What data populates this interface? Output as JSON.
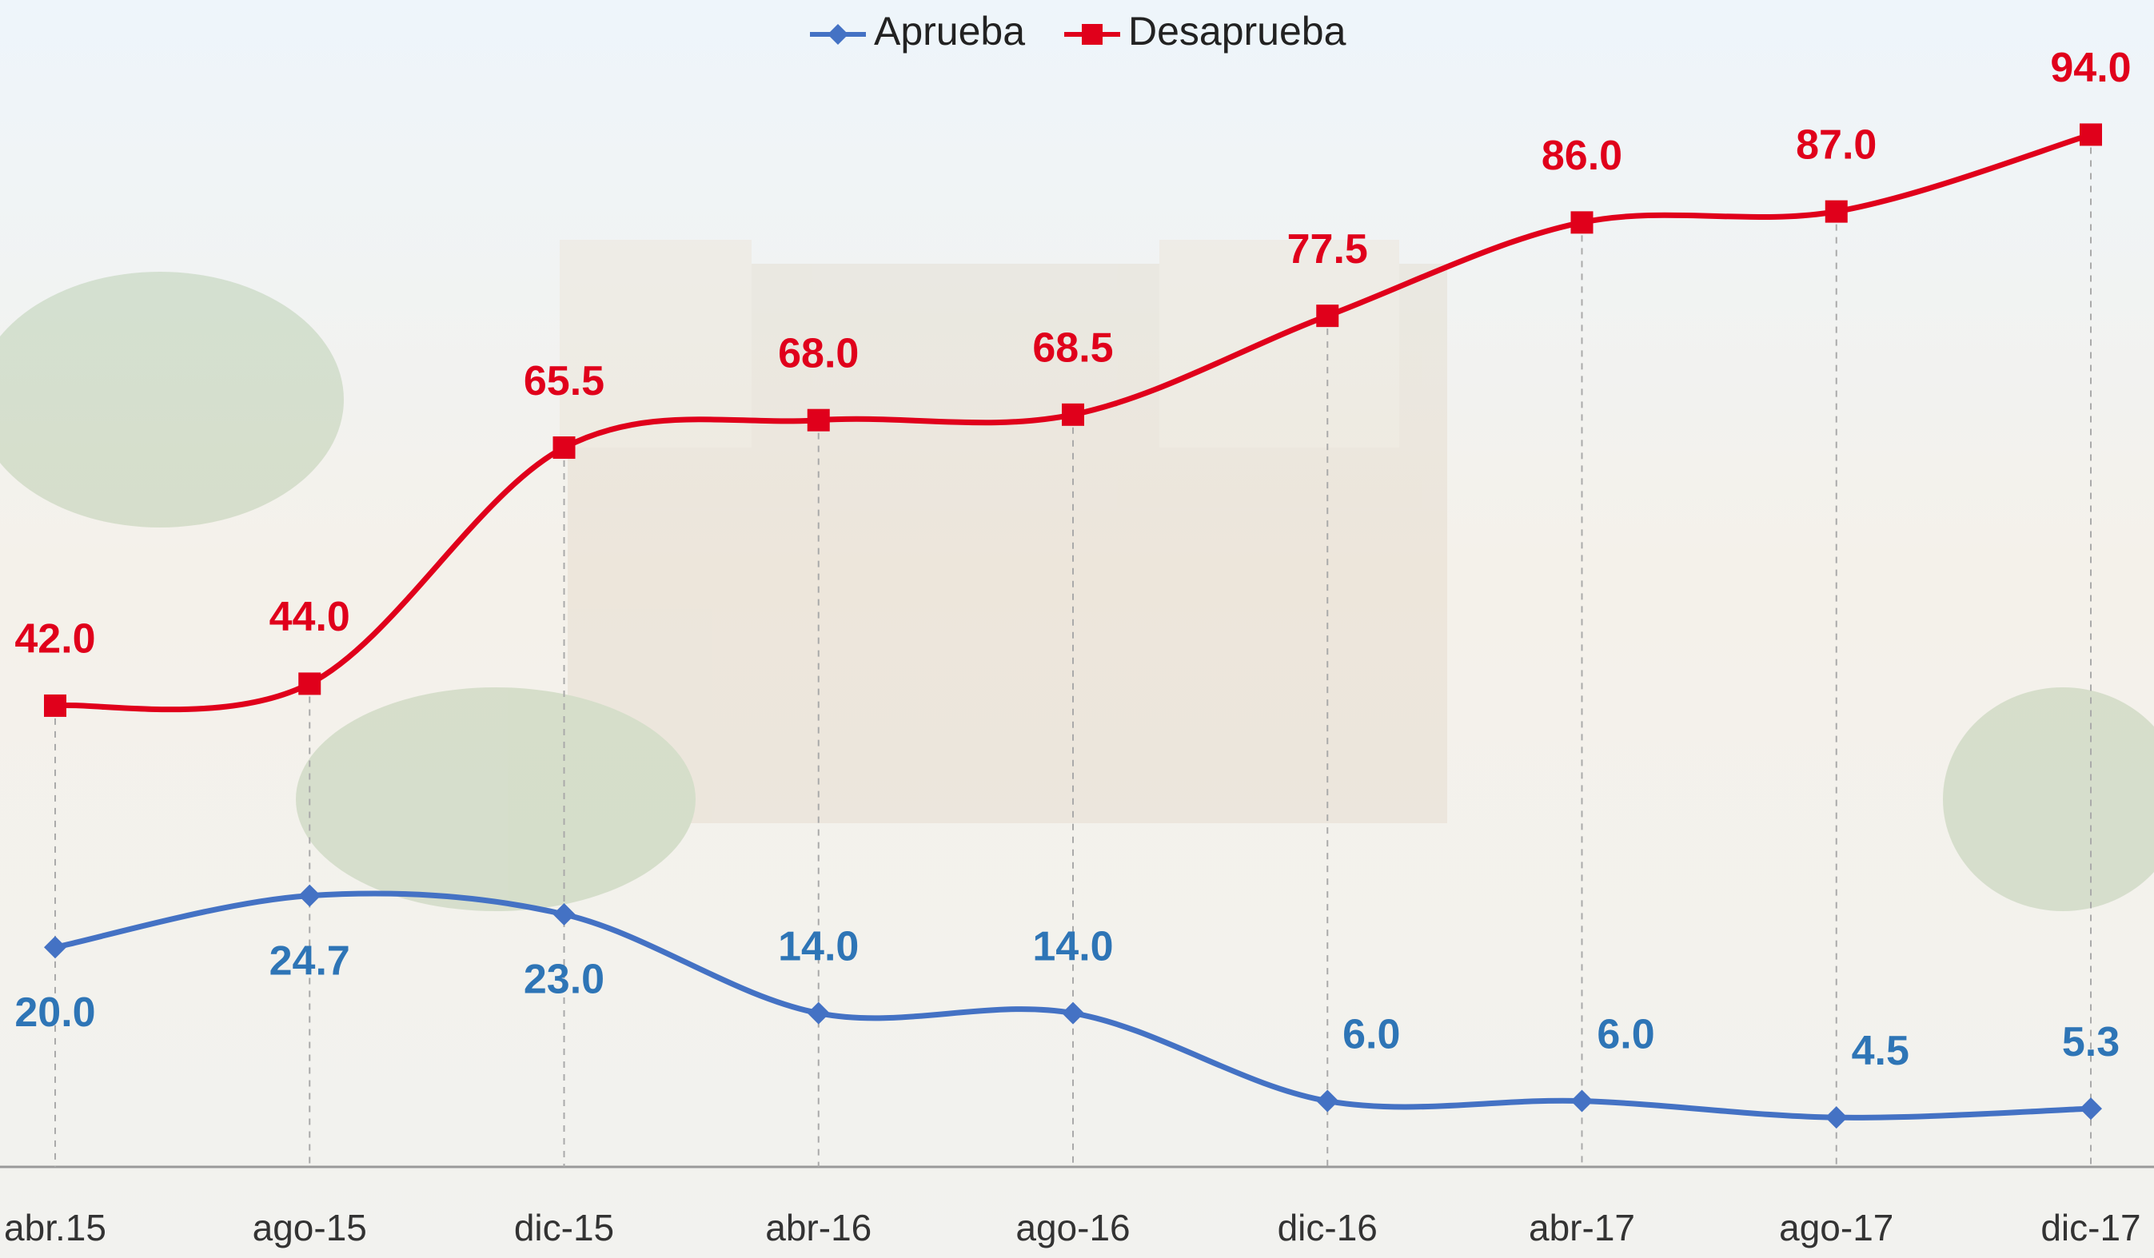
{
  "chart_data": {
    "type": "line",
    "categories": [
      "abr.15",
      "ago-15",
      "dic-15",
      "abr-16",
      "ago-16",
      "dic-16",
      "abr-17",
      "ago-17",
      "dic-17"
    ],
    "series": [
      {
        "name": "Aprueba",
        "color": "#4472c4",
        "label_color": "#2e75b6",
        "values": [
          20.0,
          24.7,
          23.0,
          14.0,
          14.0,
          6.0,
          6.0,
          4.5,
          5.3
        ],
        "value_labels": [
          "20.0",
          "24.7",
          "23.0",
          "14.0",
          "14.0",
          "6.0",
          "6.0",
          "4.5",
          "5.3"
        ]
      },
      {
        "name": "Desaprueba",
        "color": "#e0001b",
        "label_color": "#e0001b",
        "values": [
          42.0,
          44.0,
          65.5,
          68.0,
          68.5,
          77.5,
          86.0,
          87.0,
          94.0
        ],
        "value_labels": [
          "42.0",
          "44.0",
          "65.5",
          "68.0",
          "68.5",
          "77.5",
          "86.0",
          "87.0",
          "94.0"
        ]
      }
    ],
    "ylim": [
      0,
      100
    ],
    "smooth": true,
    "legend": "top"
  }
}
